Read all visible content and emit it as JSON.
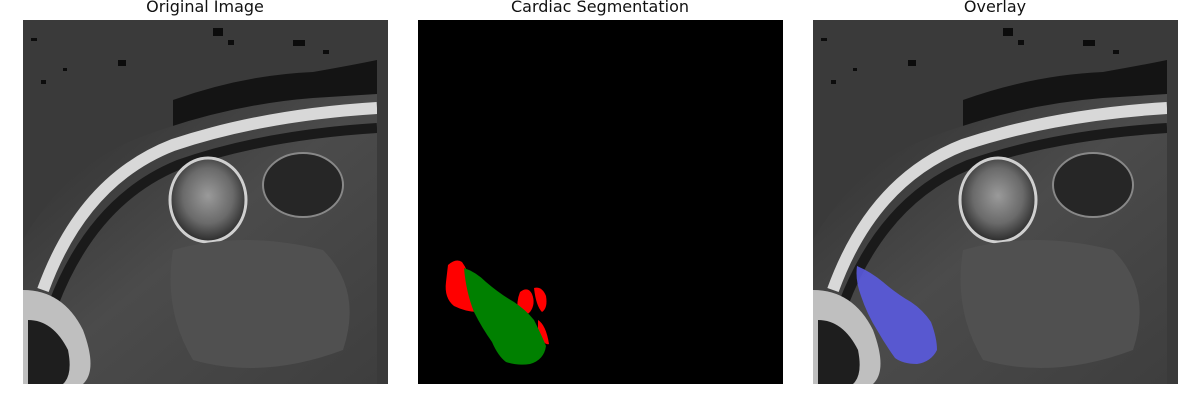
{
  "panels": [
    {
      "title": "Original Image"
    },
    {
      "title": "Cardiac Segmentation"
    },
    {
      "title": "Overlay"
    }
  ],
  "colors": {
    "figure_background": "#ffffff",
    "mri_background": "#3a3a3a",
    "segmentation_background": "#000000",
    "segmentation_class_red": "#ff0000",
    "segmentation_class_green": "#008000",
    "overlay_mask": "#5a5adf"
  }
}
